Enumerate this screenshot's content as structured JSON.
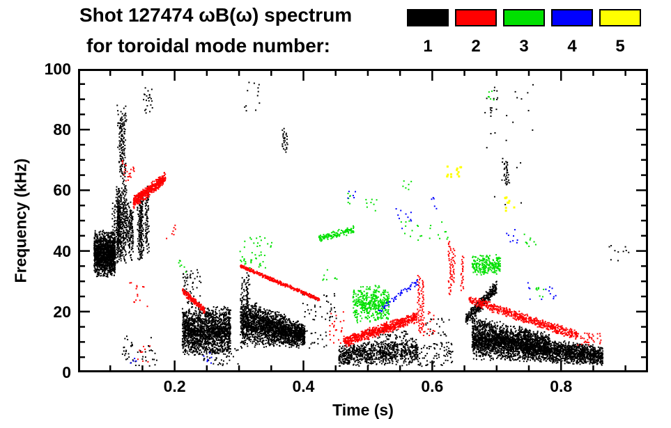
{
  "chart_data": {
    "type": "scatter",
    "title_line1": "Shot 127474 ωB(ω) spectrum",
    "title_line2": "for toroidal mode number:",
    "xlabel": "Time (s)",
    "ylabel": "Frequency (kHz)",
    "x_range": [
      0.05,
      0.935
    ],
    "y_range": [
      0,
      100
    ],
    "x_major_ticks": [
      0.2,
      0.4,
      0.6,
      0.8
    ],
    "x_tick_labels": [
      "0.2",
      "0.4",
      "0.6",
      "0.8"
    ],
    "x_minor_step": 0.05,
    "y_major_ticks": [
      0,
      20,
      40,
      60,
      80,
      100
    ],
    "y_tick_labels": [
      "0",
      "20",
      "40",
      "60",
      "80",
      "100"
    ],
    "y_minor_step": 5,
    "grid": false,
    "legend_position": "top-right",
    "modes": [
      {
        "mode": 1,
        "label": "1",
        "color": "#000000"
      },
      {
        "mode": 2,
        "label": "2",
        "color": "#ff0000"
      },
      {
        "mode": 3,
        "label": "3",
        "color": "#00e000"
      },
      {
        "mode": 4,
        "label": "4",
        "color": "#0000ff"
      },
      {
        "mode": 5,
        "label": "5",
        "color": "#ffff00"
      }
    ],
    "clusters": [
      {
        "mode": 1,
        "type": "blob",
        "t": [
          0.075,
          0.108
        ],
        "f": [
          31,
          47
        ],
        "n": 1400
      },
      {
        "mode": 1,
        "type": "streaks",
        "t": [
          0.104,
          0.158
        ],
        "f": [
          36,
          62
        ],
        "n": 24
      },
      {
        "mode": 1,
        "type": "streaks",
        "t": [
          0.112,
          0.128
        ],
        "f": [
          58,
          86
        ],
        "n": 3
      },
      {
        "mode": 1,
        "type": "specks",
        "t": [
          0.11,
          0.127
        ],
        "f": [
          74,
          88
        ],
        "n": 26
      },
      {
        "mode": 1,
        "type": "specks",
        "t": [
          0.15,
          0.166
        ],
        "f": [
          85,
          94
        ],
        "n": 22
      },
      {
        "mode": 1,
        "type": "specks",
        "t": [
          0.118,
          0.175
        ],
        "f": [
          2,
          12
        ],
        "n": 45
      },
      {
        "mode": 1,
        "type": "blob",
        "t": [
          0.212,
          0.287
        ],
        "f": [
          5,
          22
        ],
        "n": 1700
      },
      {
        "mode": 1,
        "type": "specks",
        "t": [
          0.212,
          0.242
        ],
        "f": [
          22,
          34
        ],
        "n": 55
      },
      {
        "mode": 1,
        "type": "specks",
        "t": [
          0.245,
          0.3
        ],
        "f": [
          2,
          8
        ],
        "n": 45
      },
      {
        "mode": 1,
        "type": "band",
        "t": [
          0.302,
          0.402
        ],
        "f": [
          8,
          26
        ],
        "fe": [
          8,
          16
        ],
        "n": 2000
      },
      {
        "mode": 1,
        "type": "streaks",
        "t": [
          0.303,
          0.315
        ],
        "f": [
          18,
          33
        ],
        "n": 3
      },
      {
        "mode": 1,
        "type": "specks",
        "t": [
          0.308,
          0.335
        ],
        "f": [
          86,
          96
        ],
        "n": 12
      },
      {
        "mode": 1,
        "type": "streaks",
        "t": [
          0.365,
          0.375
        ],
        "f": [
          71,
          82
        ],
        "n": 2
      },
      {
        "mode": 1,
        "type": "specks",
        "t": [
          0.398,
          0.452
        ],
        "f": [
          17,
          26
        ],
        "n": 40
      },
      {
        "mode": 1,
        "type": "specks",
        "t": [
          0.398,
          0.44
        ],
        "f": [
          8,
          14
        ],
        "n": 22
      },
      {
        "mode": 1,
        "type": "band",
        "t": [
          0.455,
          0.578
        ],
        "f": [
          2,
          9
        ],
        "fe": [
          2,
          12
        ],
        "n": 850
      },
      {
        "mode": 1,
        "type": "specks",
        "t": [
          0.5,
          0.562
        ],
        "f": [
          9,
          14
        ],
        "n": 70
      },
      {
        "mode": 1,
        "type": "specks",
        "t": [
          0.578,
          0.632
        ],
        "f": [
          2,
          10
        ],
        "n": 80
      },
      {
        "mode": 1,
        "type": "specks",
        "t": [
          0.59,
          0.628
        ],
        "f": [
          12,
          18
        ],
        "n": 22
      },
      {
        "mode": 1,
        "type": "track",
        "t": [
          0.652,
          0.7
        ],
        "f": [
          17,
          28
        ],
        "jitter": 2.5,
        "n": 320
      },
      {
        "mode": 1,
        "type": "band",
        "t": [
          0.662,
          0.782
        ],
        "f": [
          4,
          19
        ],
        "fe": [
          3,
          13
        ],
        "n": 2400
      },
      {
        "mode": 1,
        "type": "band",
        "t": [
          0.782,
          0.865
        ],
        "f": [
          3,
          11
        ],
        "fe": [
          2,
          9
        ],
        "n": 1000
      },
      {
        "mode": 1,
        "type": "specks",
        "t": [
          0.68,
          0.762
        ],
        "f": [
          55,
          95
        ],
        "n": 26
      },
      {
        "mode": 1,
        "type": "streaks",
        "t": [
          0.714,
          0.728
        ],
        "f": [
          57,
          76
        ],
        "n": 2
      },
      {
        "mode": 1,
        "type": "specks",
        "t": [
          0.688,
          0.702
        ],
        "f": [
          85,
          95
        ],
        "n": 10
      },
      {
        "mode": 1,
        "type": "specks",
        "t": [
          0.872,
          0.908
        ],
        "f": [
          36,
          42
        ],
        "n": 10
      },
      {
        "mode": 2,
        "type": "specks",
        "t": [
          0.116,
          0.138
        ],
        "f": [
          62,
          70
        ],
        "n": 22
      },
      {
        "mode": 2,
        "type": "track",
        "t": [
          0.136,
          0.186
        ],
        "f": [
          56,
          64
        ],
        "jitter": 2.2,
        "n": 480
      },
      {
        "mode": 2,
        "type": "specks",
        "t": [
          0.127,
          0.158
        ],
        "f": [
          20,
          30
        ],
        "n": 14
      },
      {
        "mode": 2,
        "type": "specks",
        "t": [
          0.142,
          0.162
        ],
        "f": [
          3,
          9
        ],
        "n": 10
      },
      {
        "mode": 2,
        "type": "specks",
        "t": [
          0.185,
          0.202
        ],
        "f": [
          44,
          50
        ],
        "n": 7
      },
      {
        "mode": 2,
        "type": "track",
        "t": [
          0.212,
          0.248
        ],
        "f": [
          27,
          20
        ],
        "jitter": 1.2,
        "n": 150
      },
      {
        "mode": 2,
        "type": "track",
        "t": [
          0.302,
          0.425
        ],
        "f": [
          35,
          24
        ],
        "jitter": 0.7,
        "n": 380
      },
      {
        "mode": 2,
        "type": "track",
        "t": [
          0.462,
          0.576
        ],
        "f": [
          10,
          18
        ],
        "jitter": 2.0,
        "n": 650
      },
      {
        "mode": 2,
        "type": "specks",
        "t": [
          0.44,
          0.463
        ],
        "f": [
          9,
          20
        ],
        "n": 22
      },
      {
        "mode": 2,
        "type": "streaks",
        "t": [
          0.578,
          0.59
        ],
        "f": [
          8,
          33
        ],
        "n": 2
      },
      {
        "mode": 2,
        "type": "streaks",
        "t": [
          0.627,
          0.653
        ],
        "f": [
          24,
          46
        ],
        "n": 3
      },
      {
        "mode": 2,
        "type": "track",
        "t": [
          0.657,
          0.826
        ],
        "f": [
          24,
          12
        ],
        "jitter": 1.7,
        "n": 560
      },
      {
        "mode": 2,
        "type": "specks",
        "t": [
          0.826,
          0.864
        ],
        "f": [
          9,
          13
        ],
        "n": 35
      },
      {
        "mode": 2,
        "type": "specks",
        "t": [
          0.585,
          0.605
        ],
        "f": [
          12,
          20
        ],
        "n": 18
      },
      {
        "mode": 3,
        "type": "specks",
        "t": [
          0.204,
          0.219
        ],
        "f": [
          33,
          38
        ],
        "n": 7
      },
      {
        "mode": 3,
        "type": "specks",
        "t": [
          0.297,
          0.352
        ],
        "f": [
          34,
          45
        ],
        "n": 45
      },
      {
        "mode": 3,
        "type": "track",
        "t": [
          0.424,
          0.478
        ],
        "f": [
          44,
          47
        ],
        "jitter": 1.4,
        "n": 130
      },
      {
        "mode": 3,
        "type": "blob",
        "t": [
          0.477,
          0.533
        ],
        "f": [
          16,
          29
        ],
        "n": 420
      },
      {
        "mode": 3,
        "type": "specks",
        "t": [
          0.466,
          0.48
        ],
        "f": [
          55,
          59
        ],
        "n": 6
      },
      {
        "mode": 3,
        "type": "specks",
        "t": [
          0.497,
          0.517
        ],
        "f": [
          53,
          58
        ],
        "n": 8
      },
      {
        "mode": 3,
        "type": "specks",
        "t": [
          0.55,
          0.627
        ],
        "f": [
          43,
          50
        ],
        "n": 22
      },
      {
        "mode": 3,
        "type": "specks",
        "t": [
          0.552,
          0.57
        ],
        "f": [
          60,
          64
        ],
        "n": 6
      },
      {
        "mode": 3,
        "type": "blob",
        "t": [
          0.662,
          0.706
        ],
        "f": [
          32,
          39
        ],
        "n": 240
      },
      {
        "mode": 3,
        "type": "specks",
        "t": [
          0.686,
          0.702
        ],
        "f": [
          87,
          93
        ],
        "n": 6
      },
      {
        "mode": 3,
        "type": "specks",
        "t": [
          0.74,
          0.764
        ],
        "f": [
          41,
          46
        ],
        "n": 9
      },
      {
        "mode": 3,
        "type": "specks",
        "t": [
          0.757,
          0.774
        ],
        "f": [
          24,
          28
        ],
        "n": 8
      },
      {
        "mode": 3,
        "type": "specks",
        "t": [
          0.428,
          0.452
        ],
        "f": [
          29,
          34
        ],
        "n": 8
      },
      {
        "mode": 4,
        "type": "specks",
        "t": [
          0.243,
          0.258
        ],
        "f": [
          3,
          7
        ],
        "n": 7
      },
      {
        "mode": 4,
        "type": "specks",
        "t": [
          0.466,
          0.481
        ],
        "f": [
          55,
          60
        ],
        "n": 5
      },
      {
        "mode": 4,
        "type": "track",
        "t": [
          0.517,
          0.578
        ],
        "f": [
          20,
          30
        ],
        "jitter": 1.4,
        "n": 55
      },
      {
        "mode": 4,
        "type": "specks",
        "t": [
          0.542,
          0.57
        ],
        "f": [
          47,
          54
        ],
        "n": 10
      },
      {
        "mode": 4,
        "type": "specks",
        "t": [
          0.597,
          0.613
        ],
        "f": [
          53,
          58
        ],
        "n": 5
      },
      {
        "mode": 4,
        "type": "specks",
        "t": [
          0.711,
          0.733
        ],
        "f": [
          42,
          47
        ],
        "n": 8
      },
      {
        "mode": 4,
        "type": "specks",
        "t": [
          0.747,
          0.793
        ],
        "f": [
          24,
          30
        ],
        "n": 13
      },
      {
        "mode": 4,
        "type": "specks",
        "t": [
          0.131,
          0.143
        ],
        "f": [
          3,
          6
        ],
        "n": 4
      },
      {
        "mode": 5,
        "type": "specks",
        "t": [
          0.621,
          0.646
        ],
        "f": [
          63,
          68
        ],
        "n": 13,
        "size": 3
      },
      {
        "mode": 5,
        "type": "specks",
        "t": [
          0.711,
          0.728
        ],
        "f": [
          53,
          58
        ],
        "n": 9,
        "size": 3
      }
    ]
  }
}
